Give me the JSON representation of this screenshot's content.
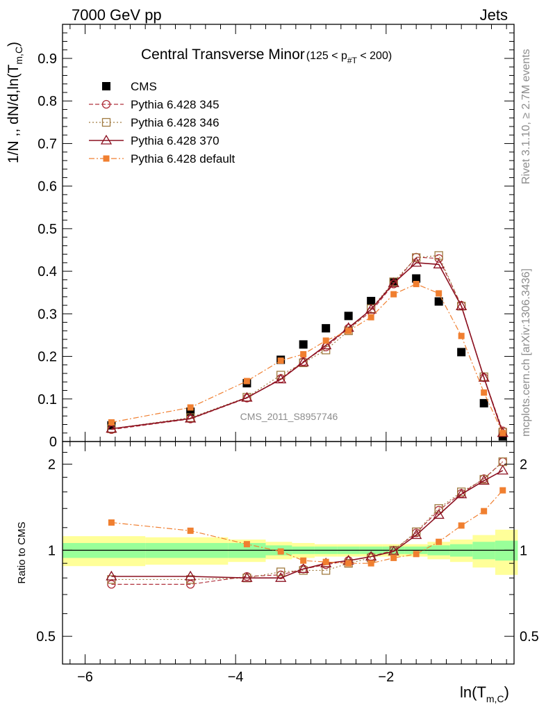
{
  "header": {
    "left": "7000 GeV pp",
    "right": "Jets"
  },
  "side": {
    "rivet": "Rivet 3.1.10, ≥ 2.7M events",
    "mcplots": "mcplots.cern.ch [arXiv:1306.3436]"
  },
  "watermark": "CMS_2011_S8957746",
  "ratio_label": "Ratio to CMS",
  "chart_data": [
    {
      "type": "scatter",
      "title": "Central Transverse Minor",
      "title_range": "(125 < p",
      "title_range_sub": "#T",
      "title_range_end": " < 200)",
      "xlabel": "ln(T",
      "xlabel_sub": "m,C",
      "xlabel_end": ")",
      "ylabel": "1/N ,, dN/d,ln(T",
      "ylabel_sub": "m,C",
      "ylabel_end": ")",
      "xlim": [
        -6.3,
        -0.3
      ],
      "ylim": [
        0,
        0.98
      ],
      "xticks": [
        -6,
        -4,
        -2
      ],
      "xtick_labels": [
        "−6",
        "−4",
        "−2"
      ],
      "yticks": [
        0,
        0.1,
        0.2,
        0.3,
        0.4,
        0.5,
        0.6,
        0.7,
        0.8,
        0.9
      ],
      "ytick_labels": [
        "0",
        "0.1",
        "0.2",
        "0.3",
        "0.4",
        "0.5",
        "0.6",
        "0.7",
        "0.8",
        "0.9"
      ],
      "legend_position": "top-left",
      "x": [
        -5.65,
        -4.6,
        -3.85,
        -3.4,
        -3.1,
        -2.8,
        -2.5,
        -2.2,
        -1.9,
        -1.6,
        -1.3,
        -1.0,
        -0.7,
        -0.45
      ],
      "series": [
        {
          "name": "CMS",
          "color": "#000000",
          "marker": "filled-square",
          "values": [
            0.038,
            0.07,
            0.137,
            0.192,
            0.228,
            0.266,
            0.295,
            0.33,
            0.375,
            0.383,
            0.329,
            0.21,
            0.09,
            0.012
          ]
        },
        {
          "name": "Pythia 6.428 345",
          "color": "#b0303c",
          "marker": "open-circle",
          "line": "dashed",
          "values": [
            0.028,
            0.053,
            0.102,
            0.148,
            0.188,
            0.222,
            0.266,
            0.305,
            0.37,
            0.433,
            0.43,
            0.32,
            0.15,
            0.025
          ]
        },
        {
          "name": "Pythia 6.428 346",
          "color": "#a07a40",
          "marker": "open-square",
          "line": "dotted",
          "values": [
            0.03,
            0.056,
            0.104,
            0.156,
            0.185,
            0.215,
            0.26,
            0.312,
            0.375,
            0.432,
            0.437,
            0.318,
            0.152,
            0.022
          ]
        },
        {
          "name": "Pythia 6.428 370",
          "color": "#8b1020",
          "marker": "open-triangle",
          "line": "solid",
          "values": [
            0.03,
            0.054,
            0.103,
            0.146,
            0.186,
            0.226,
            0.267,
            0.31,
            0.372,
            0.42,
            0.416,
            0.318,
            0.15,
            0.02
          ]
        },
        {
          "name": "Pythia 6.428 default",
          "color": "#f07f30",
          "marker": "filled-small-square",
          "line": "dashdot",
          "values": [
            0.045,
            0.08,
            0.142,
            0.19,
            0.205,
            0.237,
            0.26,
            0.292,
            0.346,
            0.37,
            0.348,
            0.248,
            0.115,
            0.02
          ]
        }
      ]
    },
    {
      "type": "scatter",
      "ylabel": "Ratio to CMS",
      "ylim": [
        0.4,
        2.4
      ],
      "log_y": true,
      "yticks": [
        0.5,
        1,
        2
      ],
      "ytick_labels": [
        "0.5",
        "1",
        "2"
      ],
      "x": [
        -5.65,
        -4.6,
        -3.85,
        -3.4,
        -3.1,
        -2.8,
        -2.5,
        -2.2,
        -1.9,
        -1.6,
        -1.3,
        -1.0,
        -0.7,
        -0.45
      ],
      "band_edges": [
        -6.3,
        -5.2,
        -4.1,
        -3.6,
        -3.25,
        -2.95,
        -2.65,
        -2.35,
        -2.05,
        -1.75,
        -1.45,
        -1.15,
        -0.85,
        -0.55,
        -0.25
      ],
      "band_inner": [
        0.06,
        0.06,
        0.06,
        0.04,
        0.03,
        0.03,
        0.03,
        0.03,
        0.03,
        0.03,
        0.04,
        0.05,
        0.07,
        0.08
      ],
      "band_outer": [
        0.12,
        0.11,
        0.09,
        0.07,
        0.06,
        0.05,
        0.05,
        0.05,
        0.05,
        0.05,
        0.07,
        0.09,
        0.13,
        0.18
      ],
      "series": [
        {
          "name": "Pythia 6.428 345",
          "color": "#b0303c",
          "marker": "open-circle",
          "line": "dashed",
          "values": [
            0.76,
            0.76,
            0.81,
            0.82,
            0.86,
            0.89,
            0.92,
            0.95,
            1.0,
            1.15,
            1.38,
            1.58,
            1.78,
            2.04
          ]
        },
        {
          "name": "Pythia 6.428 346",
          "color": "#a07a40",
          "marker": "open-square",
          "line": "dotted",
          "values": [
            0.79,
            0.79,
            0.8,
            0.84,
            0.85,
            0.85,
            0.9,
            0.94,
            1.0,
            1.16,
            1.4,
            1.6,
            1.77,
            2.04
          ]
        },
        {
          "name": "Pythia 6.428 370",
          "color": "#8b1020",
          "marker": "open-triangle",
          "line": "solid",
          "values": [
            0.81,
            0.81,
            0.8,
            0.8,
            0.86,
            0.9,
            0.92,
            0.95,
            0.99,
            1.13,
            1.33,
            1.57,
            1.75,
            1.9
          ]
        },
        {
          "name": "Pythia 6.428 default",
          "color": "#f07f30",
          "marker": "filled-small-square",
          "line": "dashdot",
          "values": [
            1.25,
            1.17,
            1.05,
            0.99,
            0.92,
            0.91,
            0.9,
            0.9,
            0.94,
            0.97,
            1.07,
            1.22,
            1.37,
            1.62
          ]
        }
      ]
    }
  ]
}
